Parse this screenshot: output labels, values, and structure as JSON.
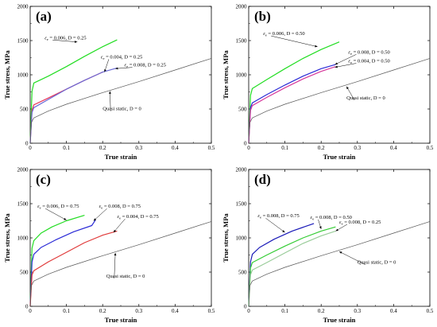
{
  "chart_data": [
    {
      "type": "line",
      "panel_label": "(a)",
      "xlabel": "True strain",
      "ylabel": "True stress, MPa",
      "xlim": [
        0,
        0.5
      ],
      "ylim": [
        0,
        2000
      ],
      "xticks": [
        0,
        0.1,
        0.2,
        0.3,
        0.4,
        0.5
      ],
      "xtick_labels": [
        "0",
        "0.1",
        "0.2",
        "0.3",
        "0.4",
        "0.5"
      ],
      "yticks": [
        0,
        500,
        1000,
        1500,
        2000
      ],
      "ytick_labels": [
        "0",
        "500",
        "1000",
        "1500",
        "2000"
      ],
      "series": [
        {
          "color": "#22dd22",
          "x": [
            0,
            0.005,
            0.01,
            0.05,
            0.1,
            0.15,
            0.2,
            0.24
          ],
          "y": [
            0,
            760,
            880,
            980,
            1120,
            1270,
            1410,
            1510
          ]
        },
        {
          "color": "#e8365a",
          "x": [
            0,
            0.005,
            0.01,
            0.05,
            0.1,
            0.15,
            0.2
          ],
          "y": [
            0,
            480,
            560,
            660,
            790,
            920,
            1040
          ]
        },
        {
          "color": "#6a6ad6",
          "x": [
            0,
            0.005,
            0.01,
            0.05,
            0.1,
            0.15,
            0.2,
            0.24
          ],
          "y": [
            0,
            450,
            520,
            640,
            790,
            920,
            1040,
            1100
          ]
        },
        {
          "color": "#555555",
          "x": [
            0,
            0.003,
            0.01,
            0.05,
            0.1,
            0.2,
            0.3,
            0.4,
            0.5
          ],
          "y": [
            0,
            300,
            370,
            470,
            570,
            740,
            900,
            1070,
            1240
          ]
        }
      ],
      "annotations": [
        {
          "sym": "ε",
          "sub": "e",
          "text": " = 0.006, D = 0.25",
          "x": 0.04,
          "y": 1520,
          "ax": 0.13,
          "ay": 1480
        },
        {
          "sym": "ε",
          "sub": "e",
          "text": " = 0.004, D = 0.25",
          "x": 0.195,
          "y": 1240,
          "ax": 0.205,
          "ay": 1040
        },
        {
          "sym": "ε",
          "sub": "e",
          "text": " = 0.008, D = 0.25",
          "x": 0.26,
          "y": 1120,
          "ax": 0.235,
          "ay": 1090
        },
        {
          "sym": "",
          "sub": "",
          "text": "Quasi static, D = 0",
          "x": 0.2,
          "y": 480,
          "ax": 0.22,
          "ay": 760
        }
      ]
    },
    {
      "type": "line",
      "panel_label": "(b)",
      "xlabel": "True strain",
      "ylabel": "True stress, MPa",
      "xlim": [
        0,
        0.5
      ],
      "ylim": [
        0,
        2000
      ],
      "xticks": [
        0,
        0.1,
        0.2,
        0.3,
        0.4,
        0.5
      ],
      "xtick_labels": [
        "0",
        "0.1",
        "0.2",
        "0.3",
        "0.4",
        "0.5"
      ],
      "yticks": [
        0,
        500,
        1000,
        1500,
        2000
      ],
      "ytick_labels": [
        "0",
        "500",
        "1000",
        "1500",
        "2000"
      ],
      "series": [
        {
          "color": "#22dd22",
          "x": [
            0,
            0.005,
            0.01,
            0.05,
            0.1,
            0.15,
            0.2,
            0.25
          ],
          "y": [
            0,
            700,
            800,
            930,
            1090,
            1240,
            1370,
            1480
          ]
        },
        {
          "color": "#2a2ad6",
          "x": [
            0,
            0.005,
            0.01,
            0.05,
            0.1,
            0.15,
            0.2,
            0.24
          ],
          "y": [
            0,
            520,
            590,
            710,
            850,
            980,
            1090,
            1150
          ]
        },
        {
          "color": "#d6369a",
          "x": [
            0,
            0.005,
            0.01,
            0.05,
            0.1,
            0.15,
            0.2,
            0.24
          ],
          "y": [
            0,
            480,
            550,
            670,
            810,
            940,
            1050,
            1120
          ]
        },
        {
          "color": "#555555",
          "x": [
            0,
            0.003,
            0.01,
            0.05,
            0.1,
            0.2,
            0.3,
            0.4,
            0.5
          ],
          "y": [
            0,
            300,
            370,
            470,
            570,
            740,
            900,
            1070,
            1240
          ]
        }
      ],
      "annotations": [
        {
          "sym": "ε",
          "sub": "e",
          "text": " = 0.006, D = 0.50",
          "x": 0.04,
          "y": 1580,
          "ax": 0.19,
          "ay": 1410
        },
        {
          "sym": "ε",
          "sub": "e",
          "text": " = 0.008, D = 0.50",
          "x": 0.275,
          "y": 1310,
          "ax": 0.238,
          "ay": 1150
        },
        {
          "sym": "ε",
          "sub": "e",
          "text": " = 0.004, D = 0.50",
          "x": 0.275,
          "y": 1180,
          "ax": 0.238,
          "ay": 1110
        },
        {
          "sym": "",
          "sub": "",
          "text": "Quasi static, D = 0",
          "x": 0.27,
          "y": 640,
          "ax": 0.27,
          "ay": 830
        }
      ]
    },
    {
      "type": "line",
      "panel_label": "(c)",
      "xlabel": "True strain",
      "ylabel": "True stress, MPa",
      "xlim": [
        0,
        0.5
      ],
      "ylim": [
        0,
        2000
      ],
      "xticks": [
        0,
        0.1,
        0.2,
        0.3,
        0.4,
        0.5
      ],
      "xtick_labels": [
        "0",
        "0.1",
        "0.2",
        "0.3",
        "0.4",
        "0.5"
      ],
      "yticks": [
        0,
        500,
        1000,
        1500,
        2000
      ],
      "ytick_labels": [
        "0",
        "500",
        "1000",
        "1500",
        "2000"
      ],
      "series": [
        {
          "color": "#22dd22",
          "x": [
            0,
            0.005,
            0.01,
            0.03,
            0.06,
            0.1,
            0.15
          ],
          "y": [
            0,
            850,
            960,
            1070,
            1160,
            1250,
            1330
          ]
        },
        {
          "color": "#2a2ad6",
          "x": [
            0,
            0.005,
            0.01,
            0.03,
            0.07,
            0.12,
            0.17,
            0.18
          ],
          "y": [
            0,
            650,
            760,
            860,
            970,
            1090,
            1180,
            1260
          ]
        },
        {
          "color": "#e03a3a",
          "x": [
            0,
            0.005,
            0.01,
            0.05,
            0.1,
            0.15,
            0.2,
            0.24
          ],
          "y": [
            0,
            460,
            520,
            650,
            790,
            930,
            1040,
            1100
          ]
        },
        {
          "color": "#555555",
          "x": [
            0,
            0.003,
            0.01,
            0.05,
            0.1,
            0.2,
            0.3,
            0.4,
            0.5
          ],
          "y": [
            0,
            300,
            370,
            470,
            570,
            740,
            900,
            1070,
            1240
          ]
        }
      ],
      "annotations": [
        {
          "sym": "ε",
          "sub": "e",
          "text": " = 0.006, D = 0.75",
          "x": 0.02,
          "y": 1440,
          "ax": 0.1,
          "ay": 1260
        },
        {
          "sym": "ε",
          "sub": "e",
          "text": " = 0.008, D = 0.75",
          "x": 0.19,
          "y": 1440,
          "ax": 0.175,
          "ay": 1250
        },
        {
          "sym": "ε",
          "sub": "e",
          "text": " = 0.004, D = 0.75",
          "x": 0.24,
          "y": 1290,
          "ax": 0.23,
          "ay": 1080
        },
        {
          "sym": "",
          "sub": "",
          "text": "Quasi static, D = 0",
          "x": 0.21,
          "y": 420,
          "ax": 0.235,
          "ay": 780
        }
      ]
    },
    {
      "type": "line",
      "panel_label": "(d)",
      "xlabel": "True strain",
      "ylabel": "True stress, MPa",
      "xlim": [
        0,
        0.5
      ],
      "ylim": [
        0,
        2000
      ],
      "xticks": [
        0,
        0.1,
        0.2,
        0.3,
        0.4,
        0.5
      ],
      "xtick_labels": [
        "0",
        "0.1",
        "0.2",
        "0.3",
        "0.4",
        "0.5"
      ],
      "yticks": [
        0,
        500,
        1000,
        1500,
        2000
      ],
      "ytick_labels": [
        "0",
        "500",
        "1000",
        "1500",
        "2000"
      ],
      "series": [
        {
          "color": "#1a1ab8",
          "x": [
            0,
            0.005,
            0.01,
            0.03,
            0.07,
            0.12,
            0.18
          ],
          "y": [
            0,
            650,
            760,
            860,
            980,
            1100,
            1210
          ]
        },
        {
          "color": "#33cc33",
          "x": [
            0,
            0.005,
            0.01,
            0.05,
            0.1,
            0.15,
            0.2,
            0.24
          ],
          "y": [
            0,
            560,
            640,
            750,
            880,
            1000,
            1100,
            1160
          ]
        },
        {
          "color": "#99cc99",
          "x": [
            0,
            0.005,
            0.01,
            0.05,
            0.1,
            0.15,
            0.2,
            0.24
          ],
          "y": [
            0,
            460,
            530,
            640,
            780,
            920,
            1030,
            1100
          ]
        },
        {
          "color": "#555555",
          "x": [
            0,
            0.003,
            0.01,
            0.05,
            0.1,
            0.2,
            0.3,
            0.4,
            0.5
          ],
          "y": [
            0,
            300,
            370,
            470,
            570,
            740,
            900,
            1070,
            1240
          ]
        }
      ],
      "annotations": [
        {
          "sym": "ε",
          "sub": "e",
          "text": " = 0.008, D = 0.75",
          "x": 0.025,
          "y": 1300,
          "ax": 0.1,
          "ay": 1080
        },
        {
          "sym": "ε",
          "sub": "e",
          "text": " = 0.008, D = 0.50",
          "x": 0.17,
          "y": 1280,
          "ax": 0.2,
          "ay": 1130
        },
        {
          "sym": "ε",
          "sub": "e",
          "text": " = 0.008, D = 0.25",
          "x": 0.25,
          "y": 1210,
          "ax": 0.24,
          "ay": 1100
        },
        {
          "sym": "",
          "sub": "",
          "text": "Quasi static, D = 0",
          "x": 0.3,
          "y": 620,
          "ax": 0.25,
          "ay": 800
        }
      ]
    }
  ]
}
